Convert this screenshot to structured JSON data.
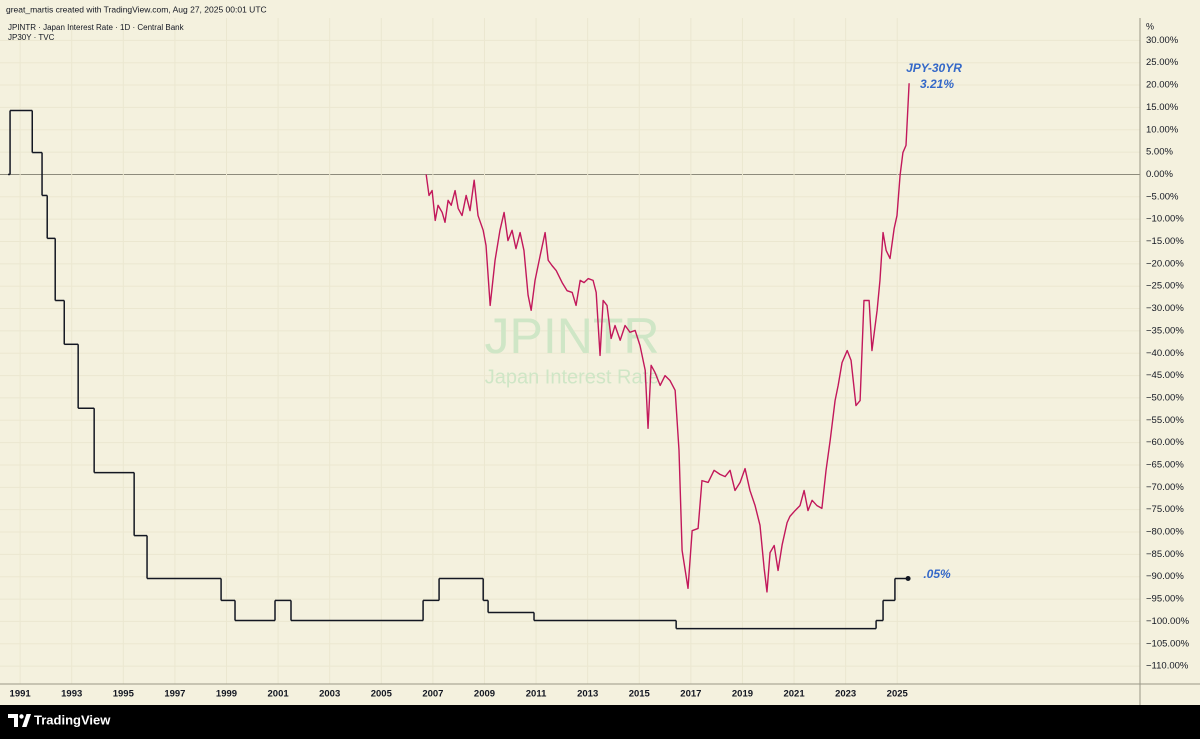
{
  "chart_data": {
    "type": "line",
    "credit": "great_martis created with TradingView.com, Aug 27, 2025 00:01 UTC",
    "watermark": [
      "JPINTR",
      "Japan Interest Rate"
    ],
    "brand": "TradingView",
    "y_unit": "%",
    "annotations": [
      "JPY-30YR",
      "3.21%",
      ".05%"
    ],
    "grid": true,
    "xlim": [
      1990.22,
      2034.41
    ],
    "xticks": [
      1991,
      1993,
      1995,
      1997,
      1999,
      2001,
      2003,
      2005,
      2007,
      2009,
      2011,
      2013,
      2015,
      2017,
      2019,
      2021,
      2023,
      2025
    ],
    "ylim": [
      -114,
      35
    ],
    "yticks": [
      {
        "value": 30,
        "label": "30.00%"
      },
      {
        "value": 25,
        "label": "25.00%"
      },
      {
        "value": 20,
        "label": "20.00%"
      },
      {
        "value": 15,
        "label": "15.00%"
      },
      {
        "value": 10,
        "label": "10.00%"
      },
      {
        "value": 5,
        "label": "5.00%"
      },
      {
        "value": 0,
        "label": "0.00%"
      },
      {
        "value": -5,
        "label": "−5.00%"
      },
      {
        "value": -10,
        "label": "−10.00%"
      },
      {
        "value": -15,
        "label": "−15.00%"
      },
      {
        "value": -20,
        "label": "−20.00%"
      },
      {
        "value": -25,
        "label": "−25.00%"
      },
      {
        "value": -30,
        "label": "−30.00%"
      },
      {
        "value": -35,
        "label": "−35.00%"
      },
      {
        "value": -40,
        "label": "−40.00%"
      },
      {
        "value": -45,
        "label": "−45.00%"
      },
      {
        "value": -50,
        "label": "−50.00%"
      },
      {
        "value": -55,
        "label": "−55.00%"
      },
      {
        "value": -60,
        "label": "−60.00%"
      },
      {
        "value": -65,
        "label": "−65.00%"
      },
      {
        "value": -70,
        "label": "−70.00%"
      },
      {
        "value": -75,
        "label": "−75.00%"
      },
      {
        "value": -80,
        "label": "−80.00%"
      },
      {
        "value": -85,
        "label": "−85.00%"
      },
      {
        "value": -90,
        "label": "−90.00%"
      },
      {
        "value": -95,
        "label": "−95.00%"
      },
      {
        "value": -100,
        "label": "−100.00%"
      },
      {
        "value": -105,
        "label": "−105.00%"
      },
      {
        "value": -110,
        "label": "−110.00%"
      }
    ],
    "series": [
      {
        "name": "JPINTR · Japan Interest Rate · 1D · Central Bank",
        "color": "#131722",
        "step": true,
        "x": [
          1990.53,
          1990.61,
          1991.47,
          1991.85,
          1992.05,
          1992.36,
          1992.71,
          1993.25,
          1993.87,
          1995.42,
          1995.92,
          1998.79,
          1999.33,
          2000.88,
          2001.5,
          2006.62,
          2007.24,
          2008.95,
          2009.14,
          2010.92,
          2016.43,
          2024.18,
          2024.45,
          2024.91,
          2025.42
        ],
        "values": [
          0,
          14.3,
          4.9,
          -4.7,
          -14.3,
          -28.2,
          -38,
          -52.3,
          -66.7,
          -80.8,
          -90.4,
          -95.3,
          -99.8,
          -95.3,
          -99.8,
          -95.3,
          -90.4,
          -95.3,
          -98,
          -99.8,
          -101.6,
          -99.8,
          -95.3,
          -90.4,
          -90.4
        ]
      },
      {
        "name": "JP30Y · TVC",
        "color": "#c2185b",
        "x": [
          2006.74,
          2006.85,
          2006.97,
          2007.09,
          2007.2,
          2007.36,
          2007.47,
          2007.59,
          2007.71,
          2007.86,
          2007.98,
          2008.13,
          2008.29,
          2008.44,
          2008.6,
          2008.75,
          2008.95,
          2009.06,
          2009.22,
          2009.41,
          2009.6,
          2009.76,
          2009.91,
          2010.07,
          2010.22,
          2010.38,
          2010.53,
          2010.69,
          2010.81,
          2010.96,
          2011.16,
          2011.35,
          2011.47,
          2011.62,
          2011.78,
          2012.01,
          2012.2,
          2012.4,
          2012.55,
          2012.71,
          2012.86,
          2013.02,
          2013.21,
          2013.33,
          2013.48,
          2013.6,
          2013.75,
          2013.91,
          2014.06,
          2014.26,
          2014.45,
          2014.64,
          2014.84,
          2015.03,
          2015.23,
          2015.34,
          2015.46,
          2015.61,
          2015.81,
          2016.0,
          2016.19,
          2016.39,
          2016.54,
          2016.66,
          2016.89,
          2017.05,
          2017.28,
          2017.43,
          2017.67,
          2017.9,
          2018.13,
          2018.33,
          2018.52,
          2018.71,
          2018.91,
          2019.1,
          2019.29,
          2019.49,
          2019.68,
          2019.84,
          2019.95,
          2020.07,
          2020.23,
          2020.38,
          2020.54,
          2020.73,
          2020.84,
          2021.04,
          2021.23,
          2021.39,
          2021.54,
          2021.7,
          2021.89,
          2022.08,
          2022.24,
          2022.4,
          2022.59,
          2022.71,
          2022.86,
          2023.06,
          2023.21,
          2023.4,
          2023.56,
          2023.71,
          2023.91,
          2024.02,
          2024.22,
          2024.33,
          2024.45,
          2024.57,
          2024.72,
          2024.88,
          2024.99,
          2025.11,
          2025.22,
          2025.34,
          2025.46
        ],
        "values": [
          0,
          -4.7,
          -3.6,
          -10.3,
          -6.9,
          -8.5,
          -10.7,
          -5.8,
          -6.9,
          -3.6,
          -7.6,
          -9.2,
          -4.7,
          -8.1,
          -1.3,
          -9.2,
          -12.5,
          -15.9,
          -29.3,
          -19.2,
          -12.5,
          -8.5,
          -14.8,
          -12.5,
          -16.6,
          -13,
          -17,
          -27,
          -30.4,
          -23.7,
          -18.1,
          -13,
          -19.2,
          -20.4,
          -21.5,
          -24.2,
          -26,
          -26.4,
          -29.3,
          -23.7,
          -24.2,
          -23.3,
          -23.7,
          -26.4,
          -40.5,
          -28.2,
          -29.3,
          -36.7,
          -33.8,
          -37.1,
          -33.8,
          -35.3,
          -34.9,
          -38.3,
          -43.8,
          -56.8,
          -42.7,
          -44.3,
          -47.2,
          -45,
          -46.1,
          -48.3,
          -61.7,
          -84.1,
          -92.6,
          -79.7,
          -79.2,
          -68.5,
          -68.9,
          -66.2,
          -67.1,
          -67.6,
          -66.2,
          -70.7,
          -68.9,
          -65.8,
          -70.7,
          -74.1,
          -78.5,
          -88.1,
          -93.4,
          -84.6,
          -83,
          -88.6,
          -82.8,
          -77.9,
          -76.5,
          -75.2,
          -74.1,
          -70.7,
          -75.2,
          -72.9,
          -74.1,
          -74.7,
          -66.2,
          -59.5,
          -50.6,
          -47.2,
          -42.1,
          -39.4,
          -41.6,
          -51.7,
          -50.6,
          -28.2,
          -28.2,
          -39.4,
          -30.4,
          -23.7,
          -13,
          -17,
          -18.8,
          -12.1,
          -9.2,
          -0.2,
          4.9,
          6.5,
          20.4
        ]
      }
    ]
  }
}
